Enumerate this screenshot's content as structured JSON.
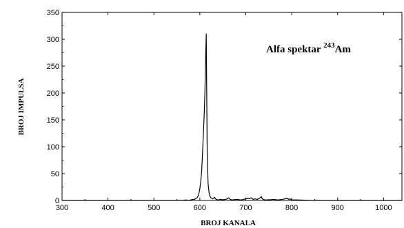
{
  "chart_data": {
    "type": "line",
    "title": "",
    "annotation": {
      "text": "Alfa spektar ",
      "superscript": "243",
      "after": "Am"
    },
    "xlabel": "BROJ KANALA",
    "ylabel": "BROJ IMPULSA",
    "xlim": [
      300,
      1040
    ],
    "ylim": [
      0,
      350
    ],
    "xticks": [
      300,
      400,
      500,
      600,
      700,
      800,
      900,
      1000
    ],
    "yticks": [
      0,
      50,
      100,
      150,
      200,
      250,
      300,
      350
    ],
    "grid": false,
    "series": [
      {
        "x": [
          300,
          540,
          560,
          570,
          575,
          580,
          585,
          588,
          590,
          592,
          594,
          596,
          598,
          600,
          602,
          604,
          606,
          608,
          610,
          611,
          612,
          613,
          614,
          615,
          616,
          618,
          620,
          622,
          624,
          626,
          628,
          630,
          632,
          634,
          636,
          640,
          645,
          650,
          655,
          660,
          662,
          664,
          666,
          670,
          680,
          690,
          700,
          705,
          708,
          712,
          716,
          720,
          725,
          730,
          734,
          736,
          738,
          742,
          750,
          760,
          770,
          780,
          785,
          790,
          793,
          796,
          800,
          810,
          850,
          900,
          950,
          1000,
          1040
        ],
        "y": [
          0,
          0,
          0,
          1,
          0,
          1,
          2,
          2,
          3,
          4,
          5,
          8,
          13,
          22,
          35,
          55,
          90,
          130,
          170,
          200,
          240,
          280,
          310,
          200,
          90,
          30,
          15,
          8,
          5,
          4,
          3,
          4,
          6,
          3,
          2,
          1,
          2,
          1,
          2,
          3,
          5,
          4,
          2,
          1,
          2,
          1,
          3,
          4,
          3,
          5,
          2,
          3,
          2,
          4,
          7,
          3,
          2,
          1,
          1,
          2,
          1,
          2,
          3,
          4,
          2,
          3,
          1,
          1,
          0,
          0,
          0,
          0,
          0
        ]
      }
    ]
  }
}
